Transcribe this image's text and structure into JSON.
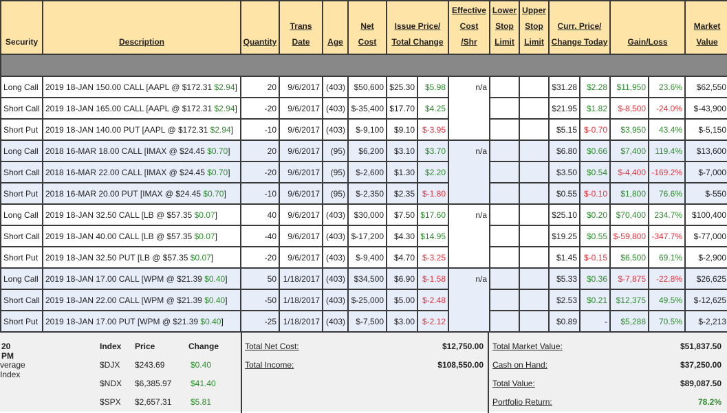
{
  "headers": [
    {
      "lines": [
        "Security"
      ],
      "plain": true
    },
    {
      "lines": [
        "Description"
      ]
    },
    {
      "lines": [
        "Quantity"
      ]
    },
    {
      "lines": [
        "Trans",
        "Date"
      ]
    },
    {
      "lines": [
        "Age"
      ]
    },
    {
      "lines": [
        "Net",
        "Cost"
      ]
    },
    {
      "lines": [
        "Issue Price/",
        "Total Change"
      ],
      "colspan": 2
    },
    {
      "lines": [
        "Effective",
        "Cost",
        "/Shr"
      ]
    },
    {
      "lines": [
        "Lower",
        "Stop",
        "Limit"
      ]
    },
    {
      "lines": [
        "Upper",
        "Stop",
        "Limit"
      ]
    },
    {
      "lines": [
        "Curr. Price/",
        "Change Today"
      ],
      "colspan": 2
    },
    {
      "lines": [
        "Gain/Loss"
      ],
      "colspan": 2
    },
    {
      "lines": [
        "Market",
        "Value"
      ]
    }
  ],
  "groups": [
    {
      "shaded": false,
      "effective_cost": "n/a",
      "rows": [
        {
          "security": "Long Call",
          "desc": "2019 18-JAN 150.00 CALL [AAPL @ $172.31 ",
          "desc_change": "$2.94",
          "desc_end": "]",
          "qty": "20",
          "date": "9/6/2017",
          "age": "(403)",
          "net_cost": "$50,600",
          "issue": "$25.30",
          "total_change": "$5.98",
          "tc_pos": true,
          "curr": "$31.28",
          "today": "$2.28",
          "today_pos": true,
          "gain": "$11,950",
          "gain_pct": "23.6%",
          "gain_pos": true,
          "market": "$62,550"
        },
        {
          "security": "Short Call",
          "desc": "2019 18-JAN 165.00 CALL [AAPL @ $172.31 ",
          "desc_change": "$2.94",
          "desc_end": "]",
          "qty": "-20",
          "date": "9/6/2017",
          "age": "(403)",
          "net_cost": "$-35,400",
          "issue": "$17.70",
          "total_change": "$4.25",
          "tc_pos": true,
          "curr": "$21.95",
          "today": "$1.82",
          "today_pos": true,
          "gain": "$-8,500",
          "gain_pct": "-24.0%",
          "gain_pos": false,
          "market": "$-43,900"
        },
        {
          "security": "Short Put",
          "desc": "2019 18-JAN 140.00 PUT [AAPL @ $172.31 ",
          "desc_change": "$2.94",
          "desc_end": "]",
          "qty": "-10",
          "date": "9/6/2017",
          "age": "(403)",
          "net_cost": "$-9,100",
          "issue": "$9.10",
          "total_change": "$-3.95",
          "tc_pos": false,
          "curr": "$5.15",
          "today": "$-0.70",
          "today_pos": false,
          "gain": "$3,950",
          "gain_pct": "43.4%",
          "gain_pos": true,
          "market": "$-5,150"
        }
      ]
    },
    {
      "shaded": true,
      "effective_cost": "n/a",
      "rows": [
        {
          "security": "Long Call",
          "desc": "2018 16-MAR 18.00 CALL [IMAX @ $24.45 ",
          "desc_change": "$0.70",
          "desc_end": "]",
          "qty": "20",
          "date": "9/6/2017",
          "age": "(95)",
          "net_cost": "$6,200",
          "issue": "$3.10",
          "total_change": "$3.70",
          "tc_pos": true,
          "curr": "$6.80",
          "today": "$0.66",
          "today_pos": true,
          "gain": "$7,400",
          "gain_pct": "119.4%",
          "gain_pos": true,
          "market": "$13,600"
        },
        {
          "security": "Short Call",
          "desc": "2018 16-MAR 22.00 CALL [IMAX @ $24.45 ",
          "desc_change": "$0.70",
          "desc_end": "]",
          "qty": "-20",
          "date": "9/6/2017",
          "age": "(95)",
          "net_cost": "$-2,600",
          "issue": "$1.30",
          "total_change": "$2.20",
          "tc_pos": true,
          "curr": "$3.50",
          "today": "$0.54",
          "today_pos": true,
          "gain": "$-4,400",
          "gain_pct": "-169.2%",
          "gain_pos": false,
          "market": "$-7,000"
        },
        {
          "security": "Short Put",
          "desc": "2018 16-MAR 20.00 PUT [IMAX @ $24.45 ",
          "desc_change": "$0.70",
          "desc_end": "]",
          "qty": "-10",
          "date": "9/6/2017",
          "age": "(95)",
          "net_cost": "$-2,350",
          "issue": "$2.35",
          "total_change": "$-1.80",
          "tc_pos": false,
          "curr": "$0.55",
          "today": "$-0.10",
          "today_pos": false,
          "gain": "$1,800",
          "gain_pct": "76.6%",
          "gain_pos": true,
          "market": "$-550"
        }
      ]
    },
    {
      "shaded": false,
      "effective_cost": "n/a",
      "rows": [
        {
          "security": "Long Call",
          "desc": "2019 18-JAN 32.50 CALL [LB @ $57.35 ",
          "desc_change": "$0.07",
          "desc_end": "]",
          "qty": "40",
          "date": "9/6/2017",
          "age": "(403)",
          "net_cost": "$30,000",
          "issue": "$7.50",
          "total_change": "$17.60",
          "tc_pos": true,
          "curr": "$25.10",
          "today": "$0.20",
          "today_pos": true,
          "gain": "$70,400",
          "gain_pct": "234.7%",
          "gain_pos": true,
          "market": "$100,400"
        },
        {
          "security": "Short Call",
          "desc": "2019 18-JAN 40.00 CALL [LB @ $57.35 ",
          "desc_change": "$0.07",
          "desc_end": "]",
          "qty": "-40",
          "date": "9/6/2017",
          "age": "(403)",
          "net_cost": "$-17,200",
          "issue": "$4.30",
          "total_change": "$14.95",
          "tc_pos": true,
          "curr": "$19.25",
          "today": "$0.55",
          "today_pos": true,
          "gain": "$-59,800",
          "gain_pct": "-347.7%",
          "gain_pos": false,
          "market": "$-77,000"
        },
        {
          "security": "Short Put",
          "desc": "2019 18-JAN 32.50 PUT [LB @ $57.35 ",
          "desc_change": "$0.07",
          "desc_end": "]",
          "qty": "-20",
          "date": "9/6/2017",
          "age": "(403)",
          "net_cost": "$-9,400",
          "issue": "$4.70",
          "total_change": "$-3.25",
          "tc_pos": false,
          "curr": "$1.45",
          "today": "$-0.15",
          "today_pos": false,
          "gain": "$6,500",
          "gain_pct": "69.1%",
          "gain_pos": true,
          "market": "$-2,900"
        }
      ]
    },
    {
      "shaded": true,
      "effective_cost": "n/a",
      "rows": [
        {
          "security": "Long Call",
          "desc": "2019 18-JAN 17.00 CALL [WPM @ $21.39 ",
          "desc_change": "$0.40",
          "desc_end": "]",
          "qty": "50",
          "date": "1/18/2017",
          "age": "(403)",
          "net_cost": "$34,500",
          "issue": "$6.90",
          "total_change": "$-1.58",
          "tc_pos": false,
          "curr": "$5.33",
          "today": "$0.36",
          "today_pos": true,
          "gain": "$-7,875",
          "gain_pct": "-22.8%",
          "gain_pos": false,
          "market": "$26,625"
        },
        {
          "security": "Short Call",
          "desc": "2019 18-JAN 22.00 CALL [WPM @ $21.39 ",
          "desc_change": "$0.40",
          "desc_end": "]",
          "qty": "-50",
          "date": "1/18/2017",
          "age": "(403)",
          "net_cost": "$-25,000",
          "issue": "$5.00",
          "total_change": "$-2.48",
          "tc_pos": false,
          "curr": "$2.53",
          "today": "$0.21",
          "today_pos": true,
          "gain": "$12,375",
          "gain_pct": "49.5%",
          "gain_pos": true,
          "market": "$-12,625"
        },
        {
          "security": "Short Put",
          "desc": "2019 18-JAN 17.00 PUT [WPM @ $21.39 ",
          "desc_change": "$0.40",
          "desc_end": "]",
          "qty": "-25",
          "date": "1/18/2017",
          "age": "(403)",
          "net_cost": "$-7,500",
          "issue": "$3.00",
          "total_change": "$-2.12",
          "tc_pos": false,
          "curr": "$0.89",
          "today": "-",
          "today_pos": true,
          "gain": "$5,288",
          "gain_pct": "70.5%",
          "gain_pos": true,
          "market": "$-2,213"
        }
      ]
    }
  ],
  "bottom": {
    "time_fragment": "20 PM",
    "index_name_fragment": "verage Index",
    "index_headers": [
      "Index",
      "Price",
      "Change"
    ],
    "indices": [
      {
        "symbol": "$DJX",
        "price": "$243.69",
        "change": "$0.40"
      },
      {
        "symbol": "$NDX",
        "price": "$6,385.97",
        "change": "$41.40"
      },
      {
        "symbol": "$SPX",
        "price": "$2,657.31",
        "change": "$5.81"
      }
    ],
    "total_net_cost_label": "Total Net Cost:",
    "total_net_cost": "$12,750.00",
    "total_income_label": "Total Income:",
    "total_income": "$108,550.00",
    "total_market_value_label": "Total Market Value:",
    "total_market_value": "$51,837.50",
    "cash_on_hand_label": "Cash on Hand:",
    "cash_on_hand": "$37,250.00",
    "total_value_label": "Total Value:",
    "total_value": "$89,087.50",
    "portfolio_return_label": "Portfolio Return:",
    "portfolio_return": "78.2%"
  },
  "colors": {
    "header_bg": "#ffe4a8",
    "shaded_row": "#e8edfa",
    "positive": "#2e8b2e",
    "negative": "#e8333a",
    "separator": "#888888"
  }
}
